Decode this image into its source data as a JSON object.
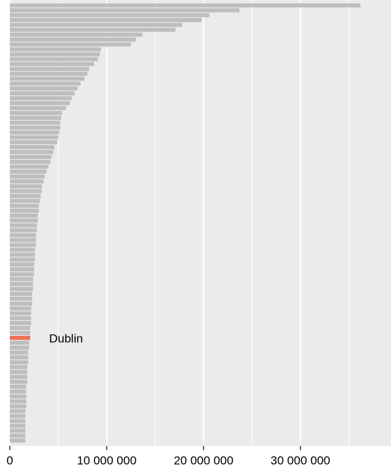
{
  "chart_data": {
    "type": "barh",
    "categories": [
      null,
      null,
      null,
      null,
      null,
      null,
      null,
      null,
      null,
      null,
      null,
      null,
      null,
      null,
      null,
      null,
      null,
      null,
      null,
      null,
      null,
      null,
      null,
      null,
      null,
      null,
      null,
      null,
      null,
      null,
      null,
      null,
      null,
      null,
      null,
      null,
      null,
      null,
      null,
      null,
      null,
      null,
      null,
      null,
      null,
      null,
      null,
      null,
      null,
      null,
      null,
      null,
      null,
      null,
      null,
      null,
      null,
      null,
      null,
      null,
      null,
      null,
      null,
      null,
      null,
      null,
      null,
      null,
      "Dublin",
      null,
      null,
      null,
      null,
      null,
      null,
      null,
      null,
      null,
      null,
      null,
      null,
      null,
      null,
      null,
      null,
      null,
      null,
      null,
      null,
      null
    ],
    "values": [
      36200000,
      23700000,
      20600000,
      19800000,
      17800000,
      17100000,
      13700000,
      13000000,
      12500000,
      9400000,
      9300000,
      9100000,
      8700000,
      8200000,
      8000000,
      7700000,
      7300000,
      7000000,
      6700000,
      6400000,
      6200000,
      5800000,
      5400000,
      5300000,
      5200000,
      5200000,
      5100000,
      5000000,
      4900000,
      4600000,
      4500000,
      4300000,
      4200000,
      4000000,
      3800000,
      3600000,
      3500000,
      3300000,
      3300000,
      3200000,
      3100000,
      3000000,
      3000000,
      2900000,
      2900000,
      2800000,
      2800000,
      2700000,
      2700000,
      2700000,
      2600000,
      2600000,
      2600000,
      2500000,
      2500000,
      2500000,
      2400000,
      2400000,
      2400000,
      2300000,
      2300000,
      2300000,
      2200000,
      2200000,
      2200000,
      2200000,
      2100000,
      2100000,
      2100000,
      2000000,
      2000000,
      1900000,
      1900000,
      1900000,
      1800000,
      1800000,
      1800000,
      1800000,
      1700000,
      1700000,
      1700000,
      1700000,
      1700000,
      1600000,
      1600000,
      1600000,
      1600000,
      1600000,
      1600000,
      1600000
    ],
    "color": "#bebebe",
    "highlight_color": "#f0705a",
    "xlim": [
      0,
      39350000
    ],
    "xticks": [
      0,
      {
        "value": 10000000,
        "label": "10 000 000"
      },
      {
        "value": 20000000,
        "label": "20 000 000"
      },
      {
        "value": 30000000,
        "label": "30 000 000"
      }
    ],
    "xminorticks": [
      5000000,
      15000000,
      25000000,
      35000000
    ],
    "grid": true
  }
}
